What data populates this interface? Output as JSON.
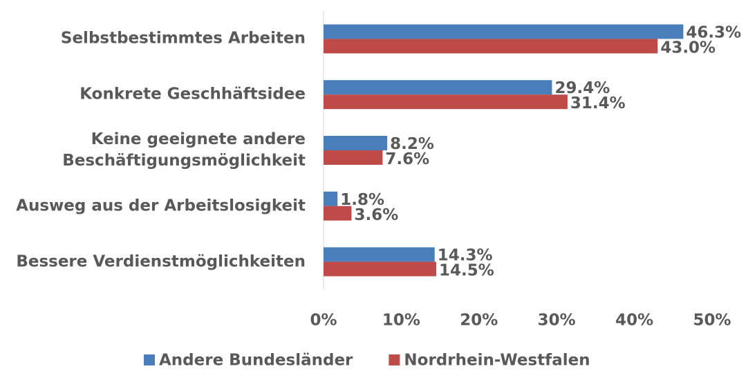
{
  "chart_data": {
    "type": "hbar",
    "categories": [
      "Selbstbestimmtes Arbeiten",
      "Konkrete Geschhäftsidee",
      "Keine geeignete andere Beschäftigungsmöglichkeit",
      "Ausweg aus der Arbeitslosigkeit",
      "Bessere Verdienstmöglichkeiten"
    ],
    "series": [
      {
        "name": "Andere Bundesländer",
        "color": "#4a7ebb",
        "values": [
          46.3,
          29.4,
          8.2,
          1.8,
          14.3
        ],
        "value_labels": [
          "46.3%",
          "29.4%",
          "8.2%",
          "1.8%",
          "14.3%"
        ]
      },
      {
        "name": "Nordrhein-Westfalen",
        "color": "#be4b48",
        "values": [
          43.0,
          31.4,
          7.6,
          3.6,
          14.5
        ],
        "value_labels": [
          "43.0%",
          "31.4%",
          "7.6%",
          "3.6%",
          "14.5%"
        ]
      }
    ],
    "xlim": [
      0,
      50
    ],
    "xticks": [
      {
        "value": 0,
        "label": "0%"
      },
      {
        "value": 10,
        "label": "10%"
      },
      {
        "value": 20,
        "label": "20%"
      },
      {
        "value": 30,
        "label": "30%"
      },
      {
        "value": 40,
        "label": "40%"
      },
      {
        "value": 50,
        "label": "50%"
      }
    ],
    "legend": "bottom"
  }
}
